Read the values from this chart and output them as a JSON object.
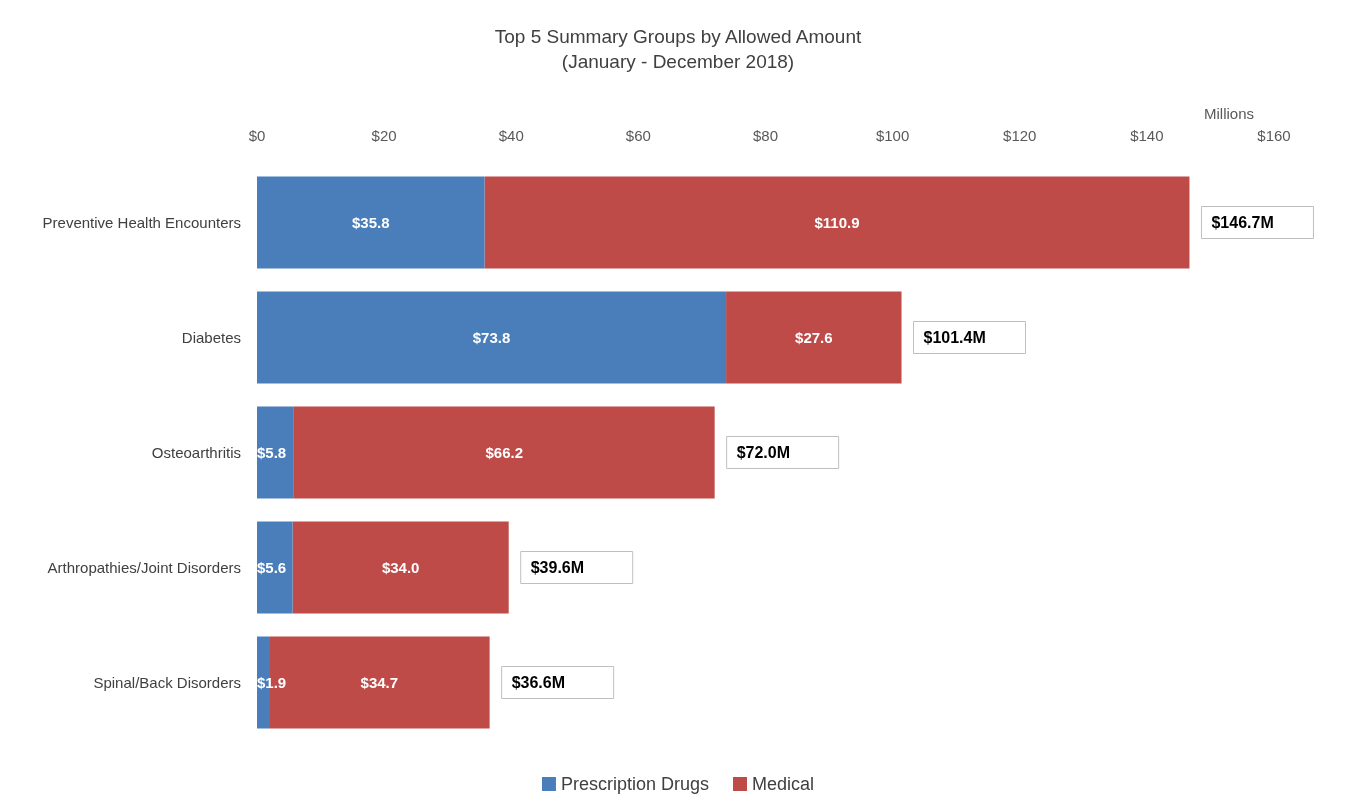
{
  "chart_data": {
    "type": "bar",
    "orientation": "horizontal",
    "stacked": true,
    "title": "Top 5 Summary Groups by Allowed Amount",
    "subtitle": "(January - December 2018)",
    "xlabel": "Millions",
    "categories": [
      "Preventive Health Encounters",
      "Diabetes",
      "Osteoarthritis",
      "Arthropathies/Joint Disorders",
      "Spinal/Back Disorders"
    ],
    "series": [
      {
        "name": "Prescription Drugs",
        "color": "#4a7ebb",
        "values": [
          35.8,
          73.8,
          5.8,
          5.6,
          1.9
        ],
        "value_labels": [
          "$35.8",
          "$73.8",
          "$5.8",
          "$5.6",
          "$1.9"
        ]
      },
      {
        "name": "Medical",
        "color": "#be4b48",
        "values": [
          110.9,
          27.6,
          66.2,
          34.0,
          34.7
        ],
        "value_labels": [
          "$110.9",
          "$27.6",
          "$66.2",
          "$34.0",
          "$34.7"
        ]
      }
    ],
    "totals": [
      "$146.7M",
      "$101.4M",
      "$72.0M",
      "$39.6M",
      "$36.6M"
    ],
    "xlim": [
      0,
      160
    ],
    "xticks": [
      {
        "value": 0,
        "label": "$0"
      },
      {
        "value": 20,
        "label": "$20"
      },
      {
        "value": 40,
        "label": "$40"
      },
      {
        "value": 60,
        "label": "$60"
      },
      {
        "value": 80,
        "label": "$80"
      },
      {
        "value": 100,
        "label": "$100"
      },
      {
        "value": 120,
        "label": "$120"
      },
      {
        "value": 140,
        "label": "$140"
      },
      {
        "value": 160,
        "label": "$160"
      }
    ],
    "grid": false,
    "legend": "bottom"
  }
}
